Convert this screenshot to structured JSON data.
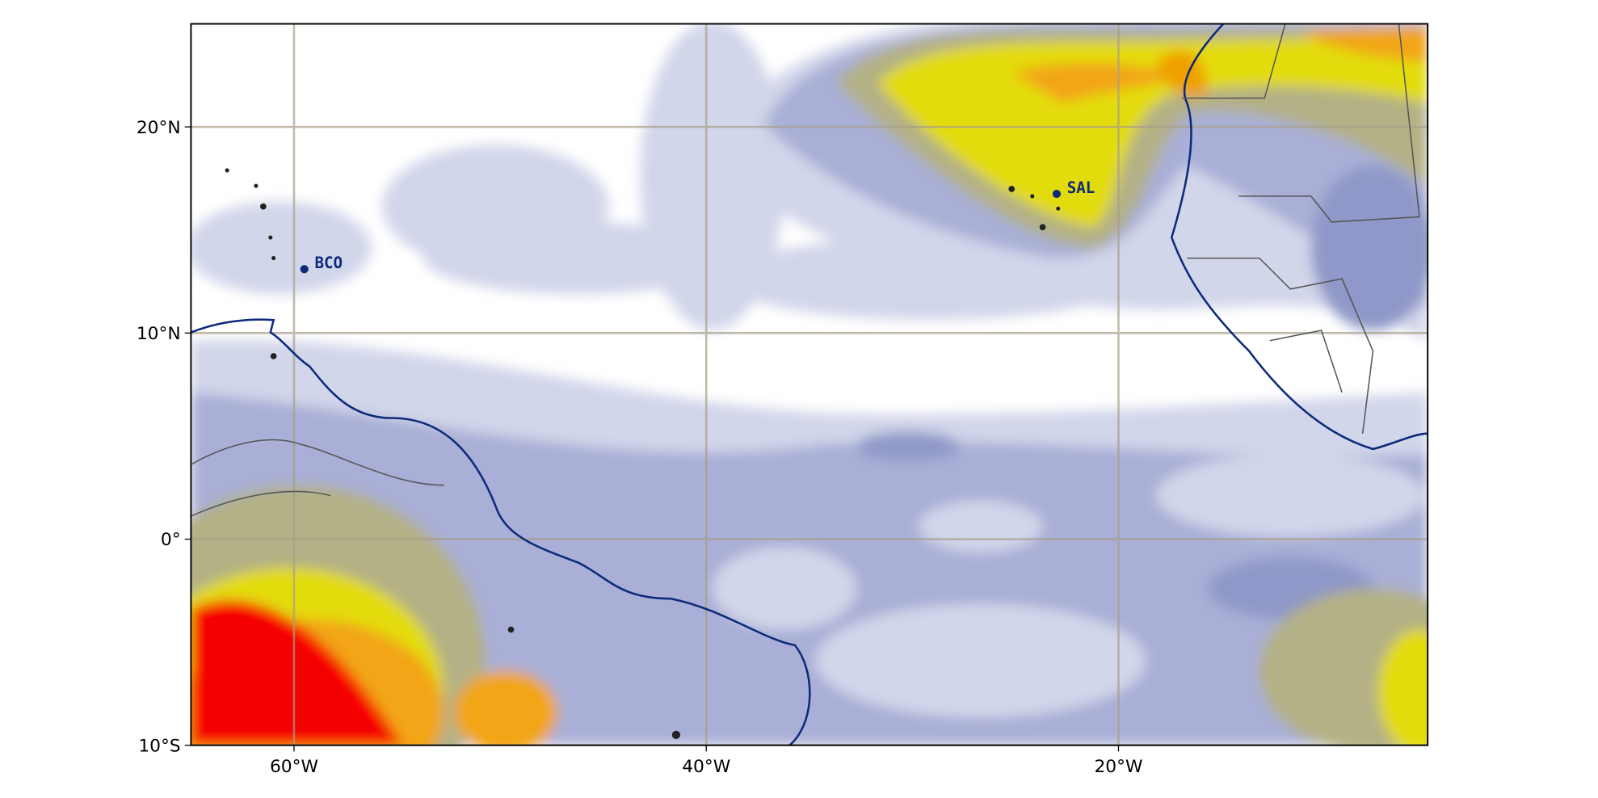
{
  "map": {
    "xlim": [
      -65,
      -5
    ],
    "ylim": [
      -10,
      25
    ],
    "xticks": [
      {
        "value": -60,
        "label": "60°W"
      },
      {
        "value": -40,
        "label": "40°W"
      },
      {
        "value": -20,
        "label": "20°W"
      }
    ],
    "yticks": [
      {
        "value": 20,
        "label": "20°N"
      },
      {
        "value": 10,
        "label": "10°N"
      },
      {
        "value": 0,
        "label": "0°"
      },
      {
        "value": -10,
        "label": "10°S"
      }
    ],
    "stations": [
      {
        "name": "BCO",
        "lon": -59.5,
        "lat": 13.1
      },
      {
        "name": "SAL",
        "lon": -23.0,
        "lat": 16.75
      }
    ]
  }
}
